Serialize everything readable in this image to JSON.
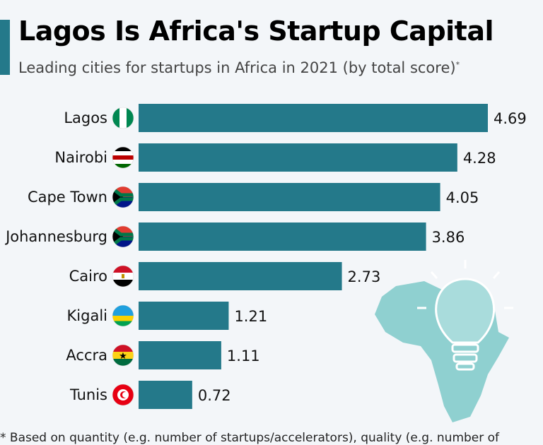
{
  "title": "Lagos Is Africa's Startup Capital",
  "subtitle": "Leading cities for startups in Africa in 2021 (by total score)",
  "subtitle_mark": "*",
  "footnote": "* Based on quantity (e.g. number of startups/accelerators), quality (e.g. number of",
  "colors": {
    "bar": "#24798a",
    "accent": "#24798a",
    "illustration": "#8fd0d0"
  },
  "chart_data": {
    "type": "bar",
    "orientation": "horizontal",
    "title": "Lagos Is Africa's Startup Capital",
    "categories": [
      "Lagos",
      "Nairobi",
      "Cape Town",
      "Johannesburg",
      "Cairo",
      "Kigali",
      "Accra",
      "Tunis"
    ],
    "flags": [
      "nigeria",
      "kenya",
      "south-africa",
      "south-africa",
      "egypt",
      "rwanda",
      "ghana",
      "tunisia"
    ],
    "values": [
      4.69,
      4.28,
      4.05,
      3.86,
      2.73,
      1.21,
      1.11,
      0.72
    ],
    "xlim": [
      0,
      4.69
    ],
    "grid": false,
    "data_labels": true
  }
}
